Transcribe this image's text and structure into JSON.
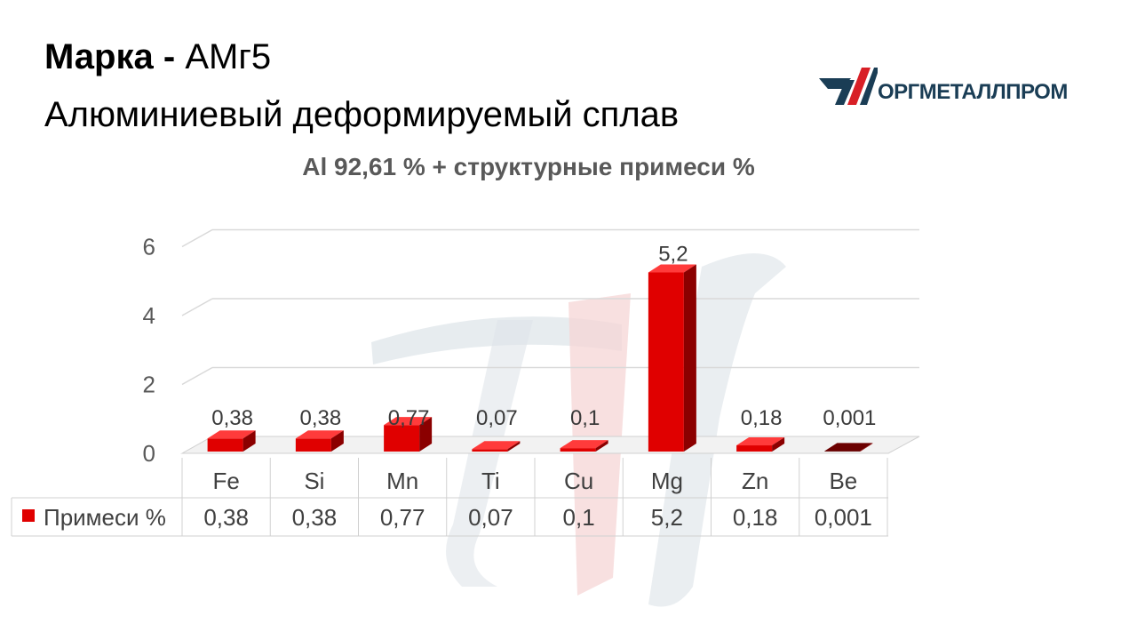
{
  "header": {
    "title_bold": "Марка -",
    "title_grade": "АМг5",
    "subtitle": "Алюминиевый деформируемый сплав"
  },
  "logo": {
    "text": "ОРГМЕТАЛЛПРОМ"
  },
  "chart_data": {
    "type": "bar",
    "title": "Al 92,61 % + структурные примеси %",
    "categories": [
      "Fe",
      "Si",
      "Mn",
      "Ti",
      "Cu",
      "Mg",
      "Zn",
      "Be"
    ],
    "series": [
      {
        "name": "Примеси %",
        "values": [
          0.38,
          0.38,
          0.77,
          0.07,
          0.1,
          5.2,
          0.18,
          0.001
        ],
        "labels": [
          "0,38",
          "0,38",
          "0,77",
          "0,07",
          "0,1",
          "5,2",
          "0,18",
          "0,001"
        ]
      }
    ],
    "ylim": [
      0,
      6
    ],
    "yticks": [
      0,
      2,
      4,
      6
    ],
    "grid": true,
    "data_table": true,
    "bar_color": "#e00000",
    "bar_color_dark": "#8b0000"
  },
  "colors": {
    "logo_dark": "#1a3d55",
    "logo_red": "#d81f26",
    "watermark_gray": "#dfe5ea",
    "watermark_red": "#f6d5d5"
  }
}
